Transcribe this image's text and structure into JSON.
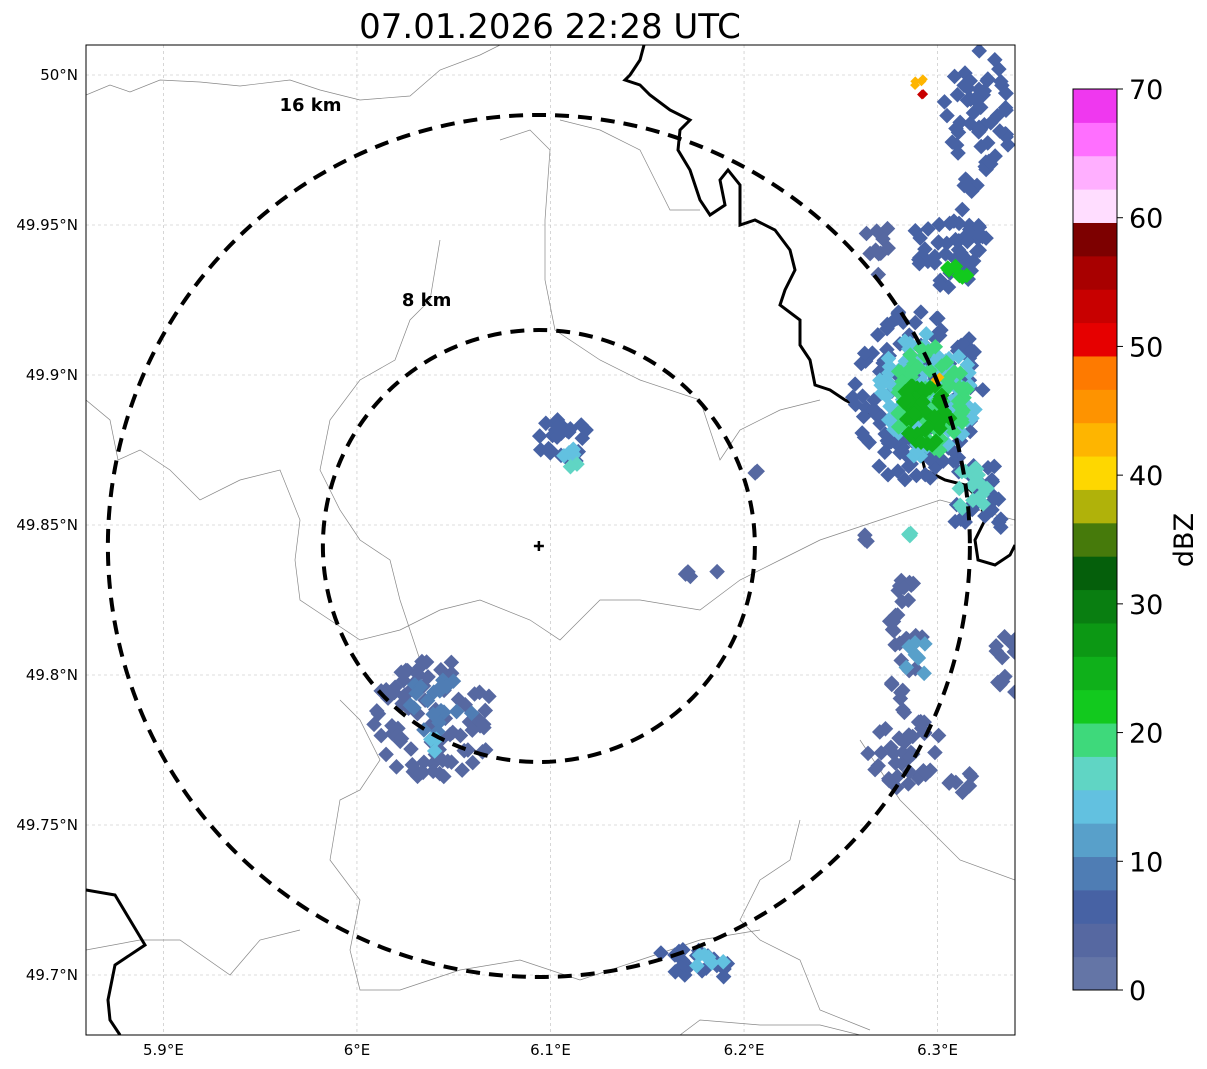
{
  "title": "07.01.2026 22:28 UTC",
  "map": {
    "lon_range": [
      5.86,
      6.34
    ],
    "lat_range": [
      49.68,
      50.01
    ],
    "x_ticks": [
      {
        "value": 5.9,
        "label": "5.9°E"
      },
      {
        "value": 6.0,
        "label": "6°E"
      },
      {
        "value": 6.1,
        "label": "6.1°E"
      },
      {
        "value": 6.2,
        "label": "6.2°E"
      },
      {
        "value": 6.3,
        "label": "6.3°E"
      }
    ],
    "y_ticks": [
      {
        "value": 49.7,
        "label": "49.7°N"
      },
      {
        "value": 49.75,
        "label": "49.75°N"
      },
      {
        "value": 49.8,
        "label": "49.8°N"
      },
      {
        "value": 49.85,
        "label": "49.85°N"
      },
      {
        "value": 49.9,
        "label": "49.9°N"
      },
      {
        "value": 49.95,
        "label": "49.95°N"
      },
      {
        "value": 50.0,
        "label": "50°N"
      }
    ],
    "grid": true,
    "center": {
      "lon": 6.094,
      "lat": 49.843
    },
    "range_rings": [
      {
        "label": "8 km",
        "label_lon": 6.036,
        "label_lat": 49.923
      },
      {
        "label": "16 km",
        "label_lon": 5.976,
        "label_lat": 49.988
      }
    ]
  },
  "colorbar": {
    "label": "dBZ",
    "min": 0,
    "max": 70,
    "ticks": [
      {
        "value": 0,
        "label": "0"
      },
      {
        "value": 10,
        "label": "10"
      },
      {
        "value": 20,
        "label": "20"
      },
      {
        "value": 30,
        "label": "30"
      },
      {
        "value": 40,
        "label": "40"
      },
      {
        "value": 50,
        "label": "50"
      },
      {
        "value": 60,
        "label": "60"
      },
      {
        "value": 70,
        "label": "70"
      }
    ],
    "colors": [
      "#6475a6",
      "#5668a1",
      "#4762a4",
      "#4f7db4",
      "#58a0ca",
      "#62c1e0",
      "#60d5c4",
      "#3ed97b",
      "#12c91e",
      "#0fb01a",
      "#0c9814",
      "#097e11",
      "#055f0b",
      "#467a0b",
      "#b0b20a",
      "#fed700",
      "#feb500",
      "#fe9300",
      "#fe7a00",
      "#e60000",
      "#c80000",
      "#a80000",
      "#7d0000",
      "#ffddff",
      "#ffafff",
      "#ff6fff",
      "#ef38ef"
    ]
  },
  "echoes": [
    {
      "lon": 6.107,
      "lat": 49.878,
      "dlon": 0.014,
      "dlat": 0.008,
      "dbz": 6,
      "n": 28
    },
    {
      "lon": 6.112,
      "lat": 49.875,
      "dlon": 0.006,
      "dlat": 0.004,
      "dbz": 13,
      "n": 6
    },
    {
      "lon": 6.113,
      "lat": 49.869,
      "dlon": 0.003,
      "dlat": 0.002,
      "dbz": 18,
      "n": 2
    },
    {
      "lon": 6.04,
      "lat": 49.785,
      "dlon": 0.032,
      "dlat": 0.02,
      "dbz": 4,
      "n": 90
    },
    {
      "lon": 6.042,
      "lat": 49.79,
      "dlon": 0.018,
      "dlat": 0.01,
      "dbz": 9,
      "n": 20
    },
    {
      "lon": 6.04,
      "lat": 49.776,
      "dlon": 0.004,
      "dlat": 0.003,
      "dbz": 14,
      "n": 3
    },
    {
      "lon": 6.178,
      "lat": 49.834,
      "dlon": 0.01,
      "dlat": 0.003,
      "dbz": 5,
      "n": 4
    },
    {
      "lon": 6.172,
      "lat": 49.703,
      "dlon": 0.022,
      "dlat": 0.006,
      "dbz": 6,
      "n": 22
    },
    {
      "lon": 6.182,
      "lat": 49.705,
      "dlon": 0.008,
      "dlat": 0.004,
      "dbz": 13,
      "n": 6
    },
    {
      "lon": 6.29,
      "lat": 49.893,
      "dlon": 0.034,
      "dlat": 0.03,
      "dbz": 6,
      "n": 150
    },
    {
      "lon": 6.295,
      "lat": 49.893,
      "dlon": 0.026,
      "dlat": 0.022,
      "dbz": 14,
      "n": 90
    },
    {
      "lon": 6.296,
      "lat": 49.892,
      "dlon": 0.02,
      "dlat": 0.018,
      "dbz": 20,
      "n": 70
    },
    {
      "lon": 6.294,
      "lat": 49.888,
      "dlon": 0.013,
      "dlat": 0.012,
      "dbz": 25,
      "n": 45
    },
    {
      "lon": 6.3,
      "lat": 49.899,
      "dlon": 0.002,
      "dlat": 0.001,
      "dbz": 42,
      "n": 2
    },
    {
      "lon": 6.306,
      "lat": 49.943,
      "dlon": 0.02,
      "dlat": 0.014,
      "dbz": 6,
      "n": 50
    },
    {
      "lon": 6.31,
      "lat": 49.935,
      "dlon": 0.006,
      "dlat": 0.004,
      "dbz": 22,
      "n": 6
    },
    {
      "lon": 6.27,
      "lat": 49.94,
      "dlon": 0.01,
      "dlat": 0.01,
      "dbz": 5,
      "n": 10
    },
    {
      "lon": 6.32,
      "lat": 49.985,
      "dlon": 0.018,
      "dlat": 0.024,
      "dbz": 6,
      "n": 60
    },
    {
      "lon": 6.322,
      "lat": 49.858,
      "dlon": 0.016,
      "dlat": 0.014,
      "dbz": 7,
      "n": 30
    },
    {
      "lon": 6.318,
      "lat": 49.862,
      "dlon": 0.01,
      "dlat": 0.008,
      "dbz": 16,
      "n": 16
    },
    {
      "lon": 6.29,
      "lat": 49.998,
      "dlon": 0.003,
      "dlat": 0.002,
      "dbz": 44,
      "n": 4
    },
    {
      "lon": 6.292,
      "lat": 49.994,
      "dlon": 0.001,
      "dlat": 0.001,
      "dbz": 54,
      "n": 2
    },
    {
      "lon": 6.283,
      "lat": 49.812,
      "dlon": 0.01,
      "dlat": 0.022,
      "dbz": 5,
      "n": 30
    },
    {
      "lon": 6.286,
      "lat": 49.846,
      "dlon": 0.002,
      "dlat": 0.002,
      "dbz": 17,
      "n": 3
    },
    {
      "lon": 6.282,
      "lat": 49.778,
      "dlon": 0.02,
      "dlat": 0.016,
      "dbz": 5,
      "n": 40
    },
    {
      "lon": 6.29,
      "lat": 49.805,
      "dlon": 0.008,
      "dlat": 0.006,
      "dbz": 11,
      "n": 8
    },
    {
      "lon": 6.335,
      "lat": 49.803,
      "dlon": 0.01,
      "dlat": 0.01,
      "dbz": 5,
      "n": 12
    },
    {
      "lon": 6.31,
      "lat": 49.765,
      "dlon": 0.008,
      "dlat": 0.006,
      "dbz": 5,
      "n": 8
    },
    {
      "lon": 6.262,
      "lat": 49.846,
      "dlon": 0.003,
      "dlat": 0.002,
      "dbz": 5,
      "n": 3
    },
    {
      "lon": 6.206,
      "lat": 49.867,
      "dlon": 0.002,
      "dlat": 0.002,
      "dbz": 5,
      "n": 2
    }
  ]
}
